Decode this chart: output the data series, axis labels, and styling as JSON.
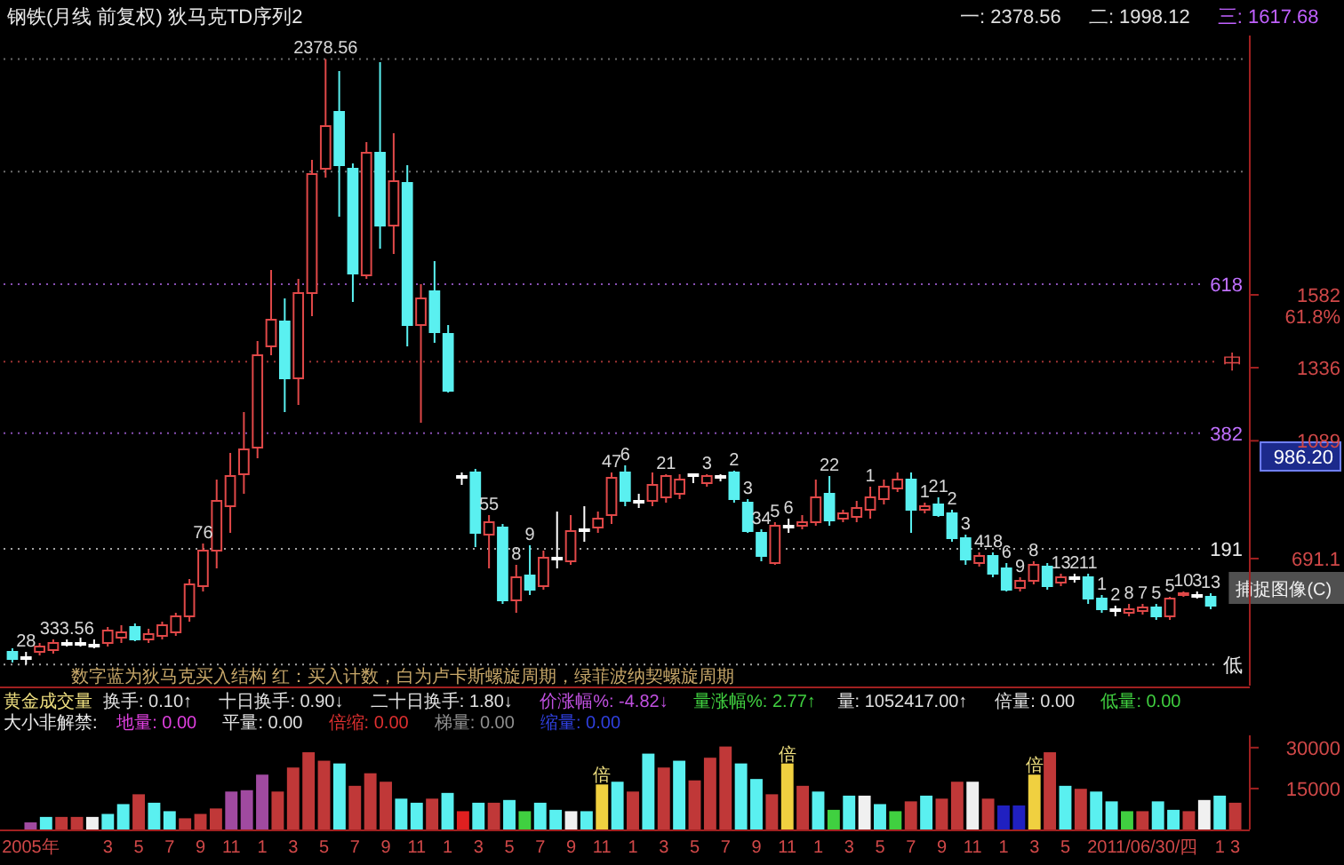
{
  "chart_data": [
    {
      "type": "candlestick",
      "title": "钢铁(月线 前复权) 狄马克TD序列2",
      "categories": [
        null,
        null,
        null,
        null,
        null,
        null,
        null,
        null,
        null,
        null,
        null,
        null,
        null,
        null,
        null,
        null,
        null,
        null,
        null,
        null,
        null,
        null,
        null,
        null,
        null,
        null,
        null,
        null,
        null,
        null,
        null,
        null,
        null,
        null,
        null,
        null,
        null,
        null,
        null,
        null,
        null,
        null,
        null,
        null,
        null,
        null,
        null,
        null,
        null,
        null,
        null,
        null,
        null,
        null,
        null,
        null,
        null,
        null,
        null,
        null,
        null,
        null,
        null,
        null,
        null,
        null,
        null,
        null,
        null,
        null,
        null,
        null,
        null,
        null,
        null,
        null,
        null,
        null,
        null,
        null,
        null,
        null,
        null,
        null,
        null,
        null,
        null,
        null,
        null
      ],
      "ohlc": [
        [
          376,
          388,
          340,
          352
        ],
        [
          358,
          376,
          333.56,
          358
        ],
        [
          376,
          406,
          364,
          394
        ],
        [
          382,
          418,
          370,
          406
        ],
        [
          406,
          418,
          394,
          406
        ],
        [
          406,
          424,
          394,
          406
        ],
        [
          400,
          418,
          388,
          400
        ],
        [
          406,
          460,
          394,
          448
        ],
        [
          424,
          466,
          406,
          442
        ],
        [
          460,
          472,
          412,
          418
        ],
        [
          418,
          454,
          406,
          436
        ],
        [
          430,
          478,
          418,
          466
        ],
        [
          442,
          508,
          430,
          496
        ],
        [
          496,
          622,
          478,
          604
        ],
        [
          598,
          742,
          580,
          718
        ],
        [
          718,
          958,
          658,
          886
        ],
        [
          868,
          1048,
          778,
          970
        ],
        [
          976,
          1186,
          910,
          1060
        ],
        [
          1066,
          1426,
          1030,
          1378
        ],
        [
          1408,
          1666,
          1378,
          1498
        ],
        [
          1492,
          1570,
          1186,
          1300
        ],
        [
          1300,
          1636,
          1210,
          1588
        ],
        [
          1588,
          2038,
          1510,
          1990
        ],
        [
          2008,
          2378.56,
          1978,
          2152
        ],
        [
          2200,
          2338,
          1846,
          2020
        ],
        [
          2008,
          2026,
          1558,
          1654
        ],
        [
          1648,
          2098,
          1636,
          2062
        ],
        [
          2062,
          2368,
          1738,
          1816
        ],
        [
          1816,
          2128,
          1720,
          1966
        ],
        [
          1960,
          2020,
          1408,
          1480
        ],
        [
          1480,
          1618,
          1150,
          1570
        ],
        [
          1594,
          1696,
          1420,
          1456
        ],
        [
          1450,
          1480,
          1252,
          1258
        ],
        [
          970,
          982,
          940,
          970
        ],
        [
          982,
          994,
          730,
          778
        ],
        [
          772,
          838,
          658,
          814
        ],
        [
          796,
          808,
          538,
          550
        ],
        [
          550,
          670,
          508,
          628
        ],
        [
          634,
          736,
          568,
          586
        ],
        [
          598,
          718,
          586,
          694
        ],
        [
          694,
          850,
          658,
          694
        ],
        [
          682,
          838,
          670,
          784
        ],
        [
          790,
          868,
          748,
          790
        ],
        [
          796,
          850,
          778,
          826
        ],
        [
          838,
          982,
          808,
          964
        ],
        [
          982,
          1006,
          868,
          886
        ],
        [
          886,
          910,
          862,
          886
        ],
        [
          886,
          982,
          868,
          940
        ],
        [
          898,
          976,
          880,
          970
        ],
        [
          910,
          976,
          892,
          958
        ],
        [
          976,
          976,
          946,
          976
        ],
        [
          946,
          976,
          934,
          970
        ],
        [
          970,
          976,
          952,
          970
        ],
        [
          982,
          988,
          880,
          892
        ],
        [
          880,
          892,
          778,
          784
        ],
        [
          778,
          790,
          682,
          700
        ],
        [
          676,
          814,
          670,
          802
        ],
        [
          802,
          826,
          778,
          802
        ],
        [
          802,
          838,
          790,
          814
        ],
        [
          814,
          958,
          802,
          898
        ],
        [
          910,
          970,
          802,
          820
        ],
        [
          826,
          856,
          814,
          844
        ],
        [
          832,
          886,
          814,
          862
        ],
        [
          856,
          934,
          826,
          898
        ],
        [
          892,
          958,
          874,
          934
        ],
        [
          928,
          982,
          916,
          958
        ],
        [
          958,
          982,
          778,
          856
        ],
        [
          856,
          880,
          844,
          868
        ],
        [
          874,
          898,
          832,
          838
        ],
        [
          844,
          856,
          748,
          760
        ],
        [
          760,
          772,
          670,
          688
        ],
        [
          676,
          712,
          664,
          700
        ],
        [
          700,
          712,
          628,
          640
        ],
        [
          658,
          676,
          580,
          586
        ],
        [
          592,
          628,
          580,
          616
        ],
        [
          616,
          682,
          604,
          670
        ],
        [
          664,
          676,
          586,
          598
        ],
        [
          610,
          640,
          598,
          628
        ],
        [
          628,
          640,
          610,
          628
        ],
        [
          628,
          640,
          538,
          556
        ],
        [
          556,
          568,
          508,
          520
        ],
        [
          520,
          532,
          496,
          520
        ],
        [
          508,
          538,
          496,
          520
        ],
        [
          514,
          538,
          502,
          526
        ],
        [
          526,
          538,
          484,
          496
        ],
        [
          496,
          562,
          484,
          556
        ],
        [
          568,
          580,
          562,
          574
        ],
        [
          568,
          580,
          556,
          568
        ],
        [
          562,
          574,
          520,
          532
        ]
      ],
      "colors": [
        "#5af0f0",
        "#ffffff",
        "#e04848",
        "#e04848",
        "#ffffff",
        "#ffffff",
        "#ffffff",
        "#e04848",
        "#e04848",
        "#5af0f0",
        "#e04848",
        "#e04848",
        "#e04848",
        "#e04848",
        "#e04848",
        "#e04848",
        "#e04848",
        "#e04848",
        "#e04848",
        "#e04848",
        "#5af0f0",
        "#e04848",
        "#e04848",
        "#e04848",
        "#5af0f0",
        "#5af0f0",
        "#e04848",
        "#5af0f0",
        "#e04848",
        "#5af0f0",
        "#e04848",
        "#5af0f0",
        "#5af0f0",
        "#ffffff",
        "#5af0f0",
        "#e04848",
        "#5af0f0",
        "#e04848",
        "#5af0f0",
        "#e04848",
        "#ffffff",
        "#e04848",
        "#ffffff",
        "#e04848",
        "#e04848",
        "#5af0f0",
        "#ffffff",
        "#e04848",
        "#e04848",
        "#e04848",
        "#ffffff",
        "#e04848",
        "#ffffff",
        "#5af0f0",
        "#5af0f0",
        "#5af0f0",
        "#e04848",
        "#ffffff",
        "#e04848",
        "#e04848",
        "#5af0f0",
        "#e04848",
        "#e04848",
        "#e04848",
        "#e04848",
        "#e04848",
        "#5af0f0",
        "#e04848",
        "#5af0f0",
        "#5af0f0",
        "#5af0f0",
        "#e04848",
        "#5af0f0",
        "#5af0f0",
        "#e04848",
        "#e04848",
        "#5af0f0",
        "#e04848",
        "#ffffff",
        "#5af0f0",
        "#5af0f0",
        "#ffffff",
        "#e04848",
        "#e04848",
        "#5af0f0",
        "#e04848",
        "#e04848",
        "#ffffff",
        "#5af0f0"
      ],
      "value_labels": [
        null,
        "28",
        null,
        null,
        "333.56",
        null,
        null,
        null,
        null,
        null,
        null,
        null,
        null,
        null,
        "76",
        null,
        null,
        null,
        null,
        null,
        null,
        null,
        null,
        "2378.56",
        null,
        null,
        null,
        null,
        null,
        null,
        null,
        null,
        null,
        null,
        null,
        "55",
        null,
        "8",
        "9",
        null,
        null,
        null,
        null,
        null,
        "47",
        "6",
        null,
        null,
        "21",
        null,
        null,
        "3",
        null,
        "2",
        "3",
        "34",
        "5",
        "6",
        null,
        null,
        "22",
        null,
        null,
        "1",
        null,
        null,
        null,
        "1",
        "21",
        "2",
        "3",
        "4",
        "18",
        "6",
        "9",
        "8",
        null,
        "13",
        "2",
        "11",
        "1",
        "2",
        "8",
        "7",
        "5",
        "5",
        "10",
        "3",
        "13"
      ],
      "ylim": [
        268,
        2458
      ],
      "yticks": [
        {
          "value": 1582,
          "label": "1582\n61.8%"
        },
        1336,
        1089,
        691.1
      ],
      "tick_labels": "y",
      "ref_lines": [
        {
          "axis": "y",
          "value": 2378.56,
          "color": "#9a9a9a",
          "line_style": "dotted"
        },
        {
          "axis": "y",
          "value": 1998.12,
          "color": "#9a9a9a",
          "line_style": "dotted"
        },
        {
          "axis": "y",
          "value": 1617.68,
          "color": "#c070ff",
          "line_style": "dotted"
        },
        {
          "axis": "y",
          "value": 1356.06,
          "color": "#e04848",
          "line_style": "dotted"
        },
        {
          "axis": "y",
          "value": 1114.75,
          "color": "#c070ff",
          "line_style": "dotted"
        },
        {
          "axis": "y",
          "value": 724.16,
          "color": "#e8e8e8",
          "line_style": "dotted"
        },
        {
          "axis": "y",
          "value": 333.56,
          "color": "#e8e8e8",
          "line_style": "dotted"
        }
      ],
      "annotations": [
        "一: 2378.56",
        "二: 1998.12",
        "三: 1617.68",
        "数字蓝为狄马克买入结构 红：买入计数，白为卢卡斯螺旋周期，绿菲波纳契螺旋周期",
        "捕捉图像(C)",
        "986.20",
        "618",
        "中",
        "382",
        "191",
        "低"
      ]
    },
    {
      "type": "bar",
      "title": "黄金成交量",
      "subtitle": "大小非解禁:",
      "categories": [
        "2005年",
        null,
        null,
        null,
        null,
        "3",
        null,
        "5",
        null,
        "7",
        null,
        "9",
        null,
        "11",
        null,
        "1",
        null,
        "3",
        null,
        "5",
        null,
        "7",
        null,
        "9",
        null,
        "11",
        null,
        "1",
        null,
        "3",
        null,
        "5",
        null,
        "7",
        null,
        "9",
        null,
        "11",
        null,
        "1",
        null,
        "3",
        null,
        "5",
        null,
        "7",
        null,
        "9",
        null,
        "11",
        null,
        "1",
        null,
        "3",
        null,
        "5",
        null,
        "7",
        null,
        "9",
        null,
        "11",
        null,
        "1",
        null,
        "3",
        null,
        "5",
        null,
        null,
        null,
        null,
        "2011/06/30/四",
        null,
        null,
        null,
        null,
        "1",
        "3"
      ],
      "values": [
        2600,
        4600,
        4600,
        4600,
        4600,
        5700,
        9300,
        12900,
        9800,
        6700,
        4100,
        5700,
        7700,
        13900,
        14400,
        20100,
        13900,
        22700,
        28300,
        25200,
        24200,
        16000,
        20600,
        17500,
        11300,
        9800,
        11300,
        13400,
        6700,
        9800,
        9800,
        10800,
        6700,
        9800,
        7200,
        6700,
        6700,
        16500,
        17500,
        13900,
        27800,
        22700,
        25200,
        18000,
        26300,
        30400,
        24200,
        18500,
        12900,
        24200,
        16000,
        13900,
        7200,
        12400,
        12400,
        9300,
        6700,
        10300,
        12400,
        11300,
        17500,
        17500,
        11300,
        8800,
        8800,
        20100,
        28300,
        16000,
        14900,
        13900,
        10300,
        6700,
        6700,
        10300,
        7200,
        6700,
        10800,
        12400,
        9800
      ],
      "colors": [
        "#a04aa0",
        "#5af0f0",
        "#c03838",
        "#c03838",
        "#f0f0f0",
        "#5af0f0",
        "#5af0f0",
        "#c03838",
        "#5af0f0",
        "#5af0f0",
        "#c03838",
        "#c03838",
        "#c03838",
        "#a04aa0",
        "#a04aa0",
        "#a04aa0",
        "#c03838",
        "#c03838",
        "#c03838",
        "#c03838",
        "#5af0f0",
        "#c03838",
        "#c03838",
        "#c03838",
        "#5af0f0",
        "#5af0f0",
        "#c03838",
        "#5af0f0",
        "#e02020",
        "#5af0f0",
        "#c03838",
        "#5af0f0",
        "#40d040",
        "#5af0f0",
        "#5af0f0",
        "#f0f0f0",
        "#5af0f0",
        "#f0d040",
        "#5af0f0",
        "#c03838",
        "#5af0f0",
        "#c03838",
        "#5af0f0",
        "#c03838",
        "#c03838",
        "#c03838",
        "#5af0f0",
        "#5af0f0",
        "#c03838",
        "#f0d040",
        "#c03838",
        "#5af0f0",
        "#40d040",
        "#5af0f0",
        "#f0f0f0",
        "#5af0f0",
        "#40d040",
        "#c03838",
        "#5af0f0",
        "#c03838",
        "#c03838",
        "#f0f0f0",
        "#c03838",
        "#2020c0",
        "#2020c0",
        "#f0d040",
        "#c03838",
        "#5af0f0",
        "#c03838",
        "#5af0f0",
        "#5af0f0",
        "#40d040",
        "#c03838",
        "#5af0f0",
        "#5af0f0",
        "#c03838",
        "#f0f0f0",
        "#5af0f0",
        "#c03838"
      ],
      "value_labels": [
        null,
        null,
        null,
        null,
        null,
        null,
        null,
        null,
        null,
        null,
        null,
        null,
        null,
        null,
        null,
        null,
        null,
        null,
        null,
        null,
        null,
        null,
        null,
        null,
        null,
        null,
        null,
        null,
        null,
        null,
        null,
        null,
        null,
        null,
        null,
        null,
        null,
        "倍",
        null,
        null,
        null,
        null,
        null,
        null,
        null,
        null,
        null,
        null,
        null,
        "倍",
        null,
        null,
        null,
        null,
        null,
        null,
        null,
        null,
        null,
        null,
        null,
        null,
        null,
        null,
        null,
        "倍",
        null,
        null,
        null,
        null,
        null,
        null,
        null,
        null,
        null,
        null,
        null,
        null,
        null
      ],
      "ylim": [
        0,
        34500
      ],
      "yticks": [
        15000,
        30000
      ],
      "annotations": [
        "换手: 0.10↑",
        "十日换手: 0.90↓",
        "二十日换手: 1.80↓",
        "价涨幅%: -4.82↓",
        "量涨幅%: 2.77↑",
        "量: 1052417.00↑",
        "倍量: 0.00",
        "低量: 0.00",
        "地量: 0.00",
        "平量: 0.00",
        "倍缩: 0.00",
        "梯量: 0.00",
        "缩量: 0.00"
      ]
    }
  ]
}
